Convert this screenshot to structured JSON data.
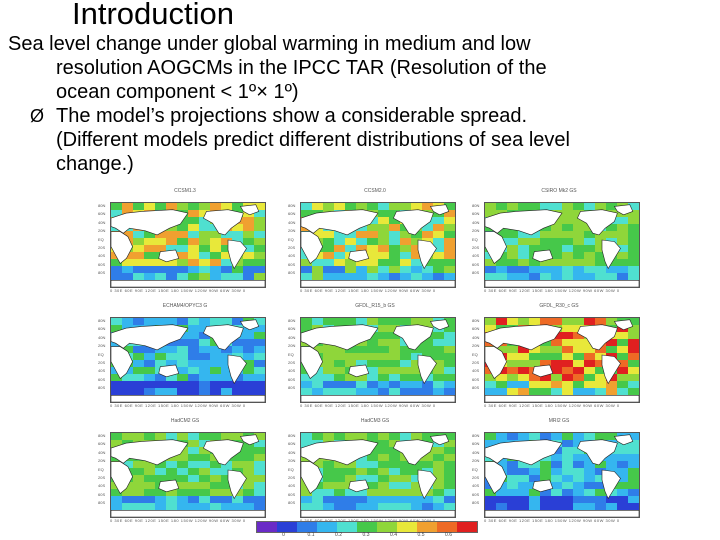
{
  "slide": {
    "title": "Introduction",
    "intro_lines": [
      "Sea level change under global warming in medium and low",
      "resolution AOGCMs in the IPCC TAR (Resolution of the",
      "ocean component < 1º× 1º)"
    ],
    "bullet_symbol": "Ø",
    "bullet_lines": [
      "The model’s projections show a considerable spread.",
      "(Different models predict different distributions of sea level",
      "change.)"
    ]
  },
  "figure": {
    "panels": [
      {
        "title": "CCSM1.3",
        "scheme": "mix"
      },
      {
        "title": "CCSM2.0",
        "scheme": "mix"
      },
      {
        "title": "CSIRO Mk2 GS",
        "scheme": "green"
      },
      {
        "title": "ECHAM4/OPYC3 G",
        "scheme": "blue"
      },
      {
        "title": "GFDL_R15_b GS",
        "scheme": "green"
      },
      {
        "title": "GFDL_R30_c GS",
        "scheme": "red"
      },
      {
        "title": "HadCM2 GS",
        "scheme": "green"
      },
      {
        "title": "HadCM3 GS",
        "scheme": "green"
      },
      {
        "title": "MRI2 GS",
        "scheme": "blue"
      }
    ],
    "lat_ticks": [
      "80N",
      "60N",
      "40N",
      "20N",
      "EQ",
      "20S",
      "40S",
      "60S",
      "80S"
    ],
    "lon_ticks": "0 30E 60E 90E 120E 150E 180 150W 120W 90W 60W 30W 0",
    "colorbar": {
      "colors": [
        "#6a2bc7",
        "#2a3fd6",
        "#2f7de8",
        "#35b6ef",
        "#4fe0d0",
        "#46c84a",
        "#8fd63a",
        "#e8e83a",
        "#f0a030",
        "#ee6a25",
        "#e02020"
      ],
      "labels": [
        "0",
        "0.1",
        "0.2",
        "0.3",
        "0.4",
        "0.5",
        "0.6"
      ]
    },
    "palette": {
      "land": "#ffffff",
      "coast": "#222222"
    }
  }
}
